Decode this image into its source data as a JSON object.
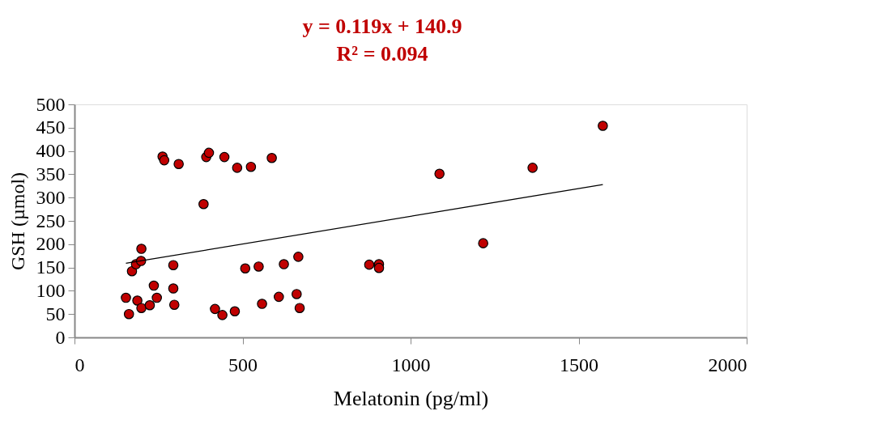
{
  "chart_data": {
    "type": "scatter",
    "xlabel": "Melatonin (pg/ml)",
    "ylabel": "GSH (µmol)",
    "annotations": [
      "y = 0.119x + 140.9",
      "R² = 0.094"
    ],
    "xlim": [
      0,
      2000
    ],
    "xticks": [
      0,
      500,
      1000,
      1500,
      2000
    ],
    "ylim": [
      0,
      500
    ],
    "yticks": [
      0,
      50,
      100,
      150,
      200,
      250,
      300,
      350,
      400,
      450,
      500
    ],
    "grid": false,
    "series": [
      {
        "marker": "circle",
        "color": "#c00000",
        "x": [
          153,
          162,
          171,
          183,
          187,
          198,
          199,
          199,
          224,
          236,
          245,
          262,
          267,
          294,
          294,
          297,
          310,
          384,
          392,
          400,
          418,
          440,
          446,
          477,
          484,
          508,
          525,
          548,
          558,
          587,
          608,
          623,
          661,
          666,
          670,
          877,
          906,
          906,
          1086,
          1216,
          1363,
          1572
        ],
        "values": [
          85,
          50,
          142,
          157,
          79,
          164,
          190,
          63,
          69,
          111,
          85,
          388,
          380,
          155,
          105,
          70,
          372,
          286,
          387,
          396,
          61,
          48,
          387,
          56,
          364,
          148,
          366,
          152,
          72,
          385,
          87,
          157,
          93,
          173,
          63,
          156,
          157,
          149,
          351,
          202,
          364,
          454
        ]
      },
      {
        "type": "line",
        "marker": "none",
        "color": "#000000",
        "line_style": "solid",
        "x": [
          153,
          1572
        ],
        "values": [
          159,
          328
        ]
      }
    ]
  }
}
